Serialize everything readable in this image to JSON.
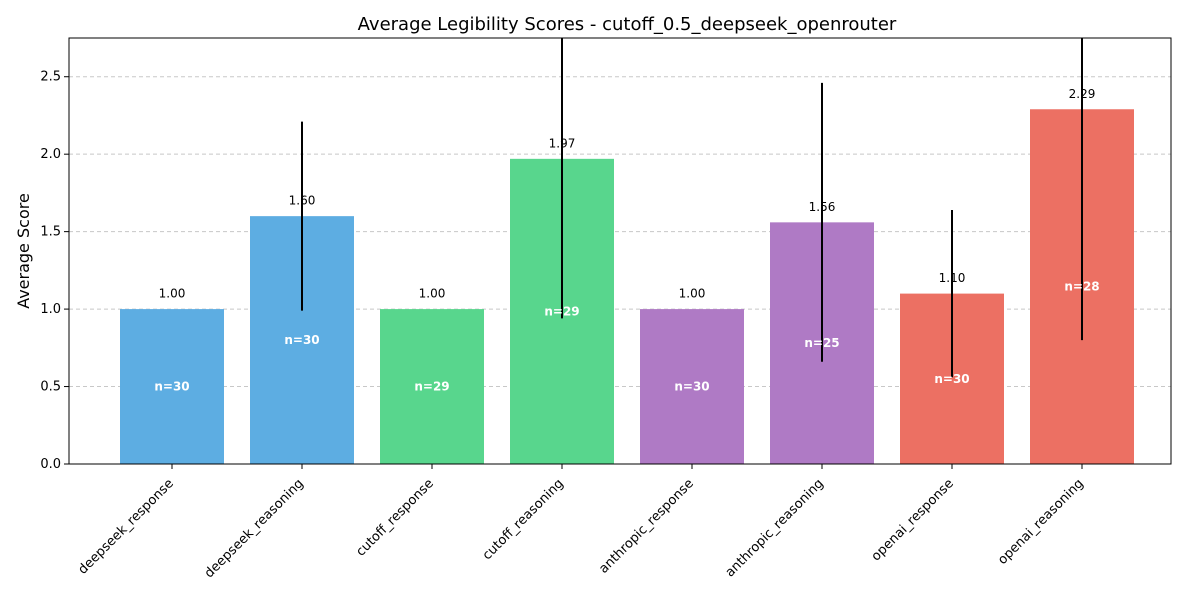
{
  "chart_data": {
    "type": "bar",
    "title": "Average Legibility Scores - cutoff_0.5_deepseek_openrouter",
    "xlabel": "",
    "ylabel": "Average Score",
    "ylim": [
      0,
      2.75
    ],
    "yticks": [
      "0.0",
      "0.5",
      "1.0",
      "1.5",
      "2.0",
      "2.5"
    ],
    "grid": "horizontal-dashed",
    "categories": [
      "deepseek_response",
      "deepseek_reasoning",
      "cutoff_response",
      "cutoff_reasoning",
      "anthropic_response",
      "anthropic_reasoning",
      "openai_response",
      "openai_reasoning"
    ],
    "values": [
      1.0,
      1.6,
      1.0,
      1.97,
      1.0,
      1.56,
      1.1,
      2.29
    ],
    "value_labels": [
      "1.00",
      "1.60",
      "1.00",
      "1.97",
      "1.00",
      "1.56",
      "1.10",
      "2.29"
    ],
    "error": [
      0,
      0.61,
      0,
      1.03,
      0,
      0.9,
      0.54,
      1.49
    ],
    "n_labels": [
      "n=30",
      "n=30",
      "n=29",
      "n=29",
      "n=30",
      "n=25",
      "n=30",
      "n=28"
    ],
    "colors": [
      "#5dade2",
      "#5dade2",
      "#58d68d",
      "#58d68d",
      "#af7ac5",
      "#af7ac5",
      "#ec7063",
      "#ec7063"
    ]
  }
}
